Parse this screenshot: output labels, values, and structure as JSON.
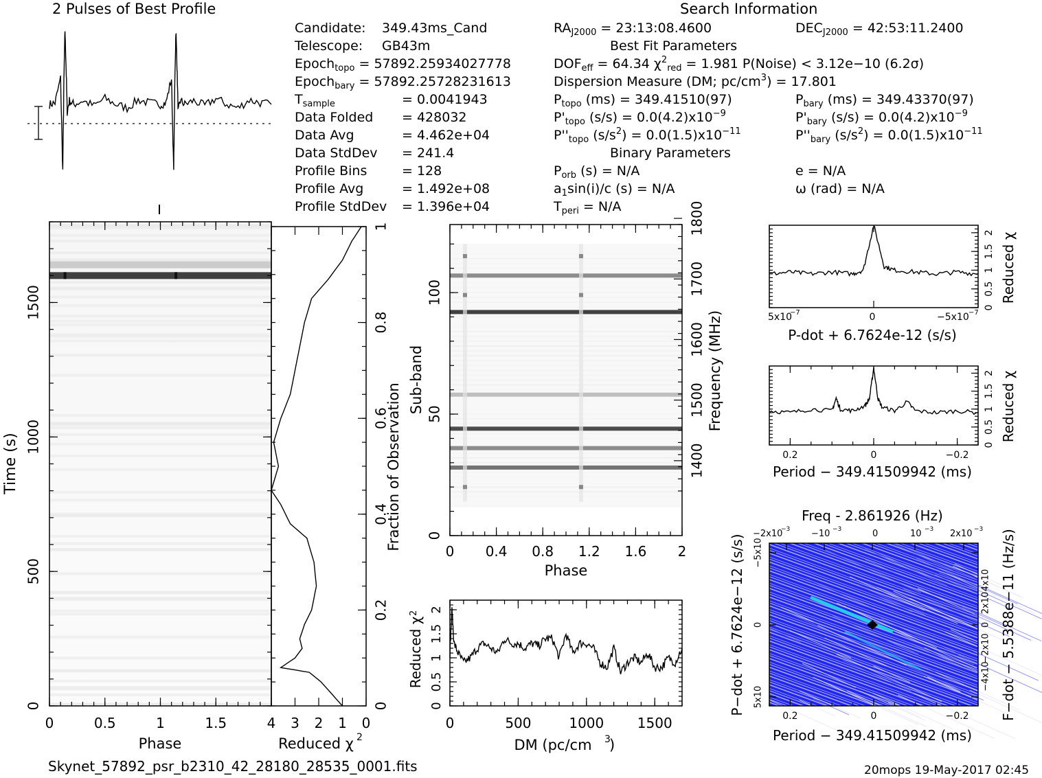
{
  "header": {
    "profile_title": "2 Pulses of Best Profile",
    "search_title": "Search Information",
    "best_fit_title": "Best Fit Parameters",
    "binary_title": "Binary Parameters"
  },
  "info_left": [
    {
      "k": "Candidate:",
      "v": "349.43ms_Cand"
    },
    {
      "k": "Telescope:",
      "v": "GB43m"
    },
    {
      "k": "Epoch<sub>topo</sub> = 57892.25934027778",
      "v": ""
    },
    {
      "k": "Epoch<sub>bary</sub> = 57892.25728231613",
      "v": ""
    },
    {
      "k": "T<sub>sample</sub>",
      "v": "=   0.0041943"
    },
    {
      "k": "Data Folded",
      "v": "=   428032"
    },
    {
      "k": "Data Avg",
      "v": "=   4.462e+04"
    },
    {
      "k": "Data StdDev",
      "v": "=   241.4"
    },
    {
      "k": "Profile Bins",
      "v": "=   128"
    },
    {
      "k": "Profile Avg",
      "v": "=   1.492e+08"
    },
    {
      "k": "Profile StdDev",
      "v": "=   1.396e+04"
    }
  ],
  "info_right": {
    "ra": "RA<sub>J2000</sub> = 23:13:08.4600",
    "dec": "DEC<sub>J2000</sub> = 42:53:11.2400",
    "dof": "DOF<sub>eff</sub> = 64.34   &chi;<sup>2</sup><sub>red</sub> = 1.981   P(Noise) &lt; 3.12e&minus;10   (6.2&sigma;)",
    "dm": "Dispersion Measure (DM; pc/cm<sup>3</sup>) = 17.801",
    "ptopo": "P<sub>topo</sub> (ms) =  349.41510(97)",
    "pbary": "P<sub>bary</sub> (ms) =  349.43370(97)",
    "pdtopo": "P'<sub>topo</sub> (s/s) = 0.0(4.2)x10<sup>&minus;9</sup>",
    "pdbary": "P'<sub>bary</sub> (s/s) = 0.0(4.2)x10<sup>&minus;9</sup>",
    "pddtopo": "P''<sub>topo</sub> (s/s<sup>2</sup>) = 0.0(1.5)x10<sup>&minus;11</sup>",
    "pddbary": "P''<sub>bary</sub> (s/s<sup>2</sup>) = 0.0(1.5)x10<sup>&minus;11</sup>",
    "porb": "P<sub>orb</sub> (s) = N/A",
    "ecc": "e = N/A",
    "asini": "a<sub>1</sub>sin(i)/c (s) = N/A",
    "omega": "&omega; (rad) = N/A",
    "tperi": "T<sub>peri</sub> = N/A"
  },
  "footer": {
    "filename": "Skynet_57892_psr_b2310_42_28180_28535_0001.fits",
    "stamp": "20mops 19-May-2017 02:45"
  },
  "colors": {
    "ink": "#000000",
    "grey_band": "#707070",
    "contour_blue": "#1b1ff0",
    "contour_cyan": "#25d8e8"
  },
  "chart_data": [
    {
      "type": "line",
      "title": "2 Pulses of Best Profile",
      "xlim": [
        0,
        2
      ],
      "series": [
        {
          "x": [
            0,
            0.05,
            0.1,
            0.12,
            0.13,
            0.14,
            0.15,
            0.16,
            0.18,
            0.22,
            0.3,
            0.4,
            0.5,
            0.6,
            0.7,
            0.8,
            0.9,
            1.0,
            1.05,
            1.1,
            1.12,
            1.13,
            1.14,
            1.15,
            1.16,
            1.18,
            1.22,
            1.3,
            1.4,
            1.5,
            1.6,
            1.7,
            1.8,
            1.9,
            2.0
          ],
          "y": [
            0.0,
            0.02,
            0.35,
            -0.9,
            0.3,
            1.0,
            0.5,
            -0.1,
            0.05,
            0.0,
            0.05,
            -0.02,
            0.08,
            0.0,
            -0.05,
            0.06,
            0.02,
            0.0,
            0.02,
            0.35,
            -0.9,
            0.3,
            1.0,
            0.5,
            -0.1,
            0.05,
            0.0,
            0.05,
            -0.02,
            0.08,
            0.0,
            -0.05,
            0.06,
            0.02,
            0.0
          ]
        }
      ]
    },
    {
      "type": "heatmap",
      "xlabel": "Phase",
      "ylabel": "Time (s)",
      "xlim": [
        0,
        2
      ],
      "ylim": [
        0,
        1800
      ],
      "xticks": [
        0,
        0.5,
        1,
        1.5
      ],
      "yticks": [
        0,
        500,
        1000,
        1500
      ],
      "bands": [
        {
          "t": 1600,
          "level": 0.75
        },
        {
          "t": 1640,
          "level": 0.2
        }
      ]
    },
    {
      "type": "line",
      "xlabel": "Reduced χ2",
      "ylabel": "Fraction of Observation",
      "xlim": [
        4,
        0
      ],
      "ylim": [
        0,
        1
      ],
      "xticks": [
        4,
        3,
        2,
        1,
        0
      ],
      "yticks": [
        0,
        0.2,
        0.4,
        0.6,
        0.8,
        1
      ],
      "series": [
        {
          "x": [
            0.2,
            0.6,
            1.0,
            1.6,
            2.3,
            2.6,
            2.8,
            3.0,
            3.2,
            3.6,
            3.9,
            3.7,
            4.0,
            3.6,
            3.4,
            3.2,
            2.5,
            2.2,
            2.1,
            2.3,
            2.6,
            2.8,
            2.7,
            3.0,
            3.6,
            2.4,
            1.9,
            1.0
          ],
          "y": [
            1,
            0.97,
            0.93,
            0.89,
            0.85,
            0.8,
            0.75,
            0.7,
            0.65,
            0.6,
            0.55,
            0.5,
            0.45,
            0.42,
            0.4,
            0.38,
            0.35,
            0.3,
            0.25,
            0.2,
            0.17,
            0.14,
            0.12,
            0.1,
            0.08,
            0.07,
            0.05,
            0.0
          ]
        }
      ]
    },
    {
      "type": "heatmap",
      "xlabel": "Phase",
      "ylabel": "Sub-band",
      "y2label": "Frequency (MHz)",
      "xlim": [
        0,
        2
      ],
      "ylim": [
        0,
        128
      ],
      "xticks": [
        0,
        0.4,
        0.8,
        1.2,
        1.6,
        2
      ],
      "yticks": [
        0,
        50,
        100
      ],
      "y2ticks": [
        1400,
        1500,
        1600,
        1700,
        1800
      ],
      "bands": [
        {
          "sb": 107,
          "level": 0.45
        },
        {
          "sb": 92,
          "level": 0.75
        },
        {
          "sb": 58,
          "level": 0.25
        },
        {
          "sb": 44,
          "level": 0.7
        },
        {
          "sb": 36,
          "level": 0.45
        },
        {
          "sb": 28,
          "level": 0.55
        }
      ]
    },
    {
      "type": "line",
      "xlabel": "DM (pc/cm3)",
      "ylabel": "Reduced χ2",
      "xlim": [
        0,
        1700
      ],
      "ylim": [
        0,
        2.2
      ],
      "xticks": [
        0,
        500,
        1000,
        1500
      ],
      "yticks": [
        0,
        0.5,
        1,
        1.5,
        2
      ],
      "series": [
        {
          "x": [
            0,
            15,
            30,
            60,
            100,
            150,
            200,
            250,
            300,
            350,
            400,
            450,
            500,
            550,
            600,
            650,
            700,
            750,
            800,
            850,
            900,
            950,
            1000,
            1050,
            1100,
            1150,
            1200,
            1250,
            1300,
            1350,
            1400,
            1450,
            1500,
            1550,
            1600,
            1650,
            1700
          ],
          "y": [
            1.1,
            2.0,
            1.3,
            1.1,
            0.9,
            1.0,
            1.2,
            1.3,
            1.2,
            1.1,
            1.4,
            1.3,
            1.3,
            1.2,
            1.3,
            1.25,
            1.4,
            1.4,
            1.0,
            1.5,
            1.1,
            1.3,
            1.3,
            1.2,
            0.9,
            0.8,
            1.2,
            0.7,
            0.9,
            1.0,
            0.9,
            1.1,
            0.8,
            0.8,
            1.0,
            0.9,
            1.2
          ]
        }
      ]
    },
    {
      "type": "line",
      "xlabel": "P-dot + 6.7624e-12 (s/s)",
      "ylabel": "Reduced χ2",
      "xlim": [
        5e-07,
        -5e-07
      ],
      "ylim": [
        0,
        2.2
      ],
      "xticks": [
        "5x10^-7",
        "0",
        "-5x10^-7"
      ],
      "yticks": [
        0,
        0.5,
        1,
        1.5,
        2
      ],
      "series": [
        {
          "x": [
            5e-07,
            4e-07,
            3e-07,
            2e-07,
            1e-07,
            5e-08,
            0,
            -5e-08,
            -1e-07,
            -2e-07,
            -3e-07,
            -4e-07,
            -5e-07
          ],
          "y": [
            0.9,
            0.95,
            0.9,
            0.95,
            0.9,
            1.0,
            2.2,
            1.1,
            1.0,
            0.95,
            0.9,
            0.95,
            0.9
          ]
        }
      ]
    },
    {
      "type": "line",
      "xlabel": "Period - 349.41509942 (ms)",
      "ylabel": "Reduced χ2",
      "xlim": [
        0.25,
        -0.25
      ],
      "ylim": [
        0,
        2.2
      ],
      "xticks": [
        0.2,
        0,
        -0.2
      ],
      "yticks": [
        0,
        0.5,
        1,
        1.5,
        2
      ],
      "series": [
        {
          "x": [
            0.25,
            0.2,
            0.15,
            0.1,
            0.09,
            0.08,
            0.05,
            0.02,
            0.01,
            0,
            -0.01,
            -0.02,
            -0.05,
            -0.08,
            -0.1,
            -0.15,
            -0.2,
            -0.25
          ],
          "y": [
            0.95,
            0.9,
            1.0,
            0.95,
            1.3,
            1.0,
            0.95,
            1.1,
            1.3,
            2.15,
            1.3,
            1.05,
            0.95,
            1.2,
            0.95,
            0.9,
            0.95,
            0.9
          ]
        }
      ]
    },
    {
      "type": "heatmap",
      "title": "Freq - 2.861926 (Hz)",
      "xlabel": "Period - 349.41509942 (ms)",
      "ylabel": "P-dot + 6.7624e-12 (s/s)",
      "y2label": "F-dot - 5.5388e-11 (Hz/s)",
      "xlim": [
        0.25,
        -0.25
      ],
      "xticks": [
        0.2,
        0,
        -0.2
      ],
      "yticks": [
        "-5x10^-7",
        "0",
        "5x10^-7"
      ],
      "x2ticks": [
        "-2x10^-3",
        "-10^-3",
        "0",
        "10^-3",
        "2x10^-3"
      ],
      "y2ticks": [
        "4x10^-8",
        "2x10^-8",
        "0",
        "-2x10^-8",
        "-4x10^-8"
      ],
      "peak": {
        "period": 0,
        "pdot": 0
      }
    }
  ]
}
